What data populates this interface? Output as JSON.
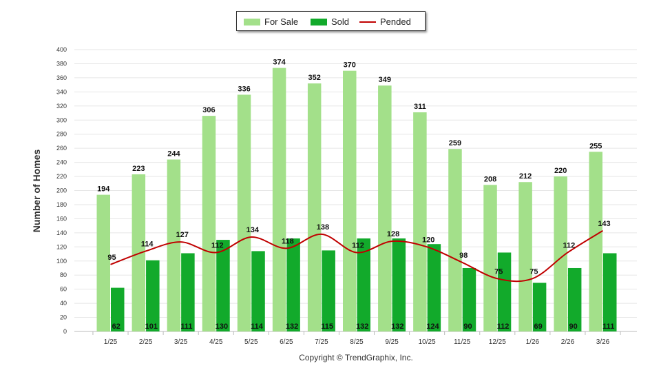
{
  "chart_data": {
    "type": "bar",
    "categories": [
      "1/25",
      "2/25",
      "3/25",
      "4/25",
      "5/25",
      "6/25",
      "7/25",
      "8/25",
      "9/25",
      "10/25",
      "11/25",
      "12/25",
      "1/26",
      "2/26",
      "3/26"
    ],
    "series": [
      {
        "name": "For Sale",
        "type": "bar",
        "color": "#a3e08a",
        "values": [
          194,
          223,
          244,
          306,
          336,
          374,
          352,
          370,
          349,
          311,
          259,
          208,
          212,
          220,
          255
        ]
      },
      {
        "name": "Sold",
        "type": "bar",
        "color": "#12aa2b",
        "values": [
          62,
          101,
          111,
          130,
          114,
          132,
          115,
          132,
          132,
          124,
          90,
          112,
          69,
          90,
          111
        ]
      },
      {
        "name": "Pended",
        "type": "line",
        "color": "#c00000",
        "values": [
          95,
          114,
          127,
          112,
          134,
          118,
          138,
          112,
          128,
          120,
          98,
          75,
          75,
          112,
          143
        ]
      }
    ],
    "ylabel": "Number of Homes",
    "ylim": [
      0,
      400
    ],
    "yticks": [
      0,
      20,
      40,
      60,
      80,
      100,
      120,
      140,
      160,
      180,
      200,
      220,
      240,
      260,
      280,
      300,
      320,
      340,
      360,
      380,
      400
    ],
    "grid": true,
    "legend": "top-center"
  },
  "copyright": "Copyright © TrendGraphix, Inc."
}
